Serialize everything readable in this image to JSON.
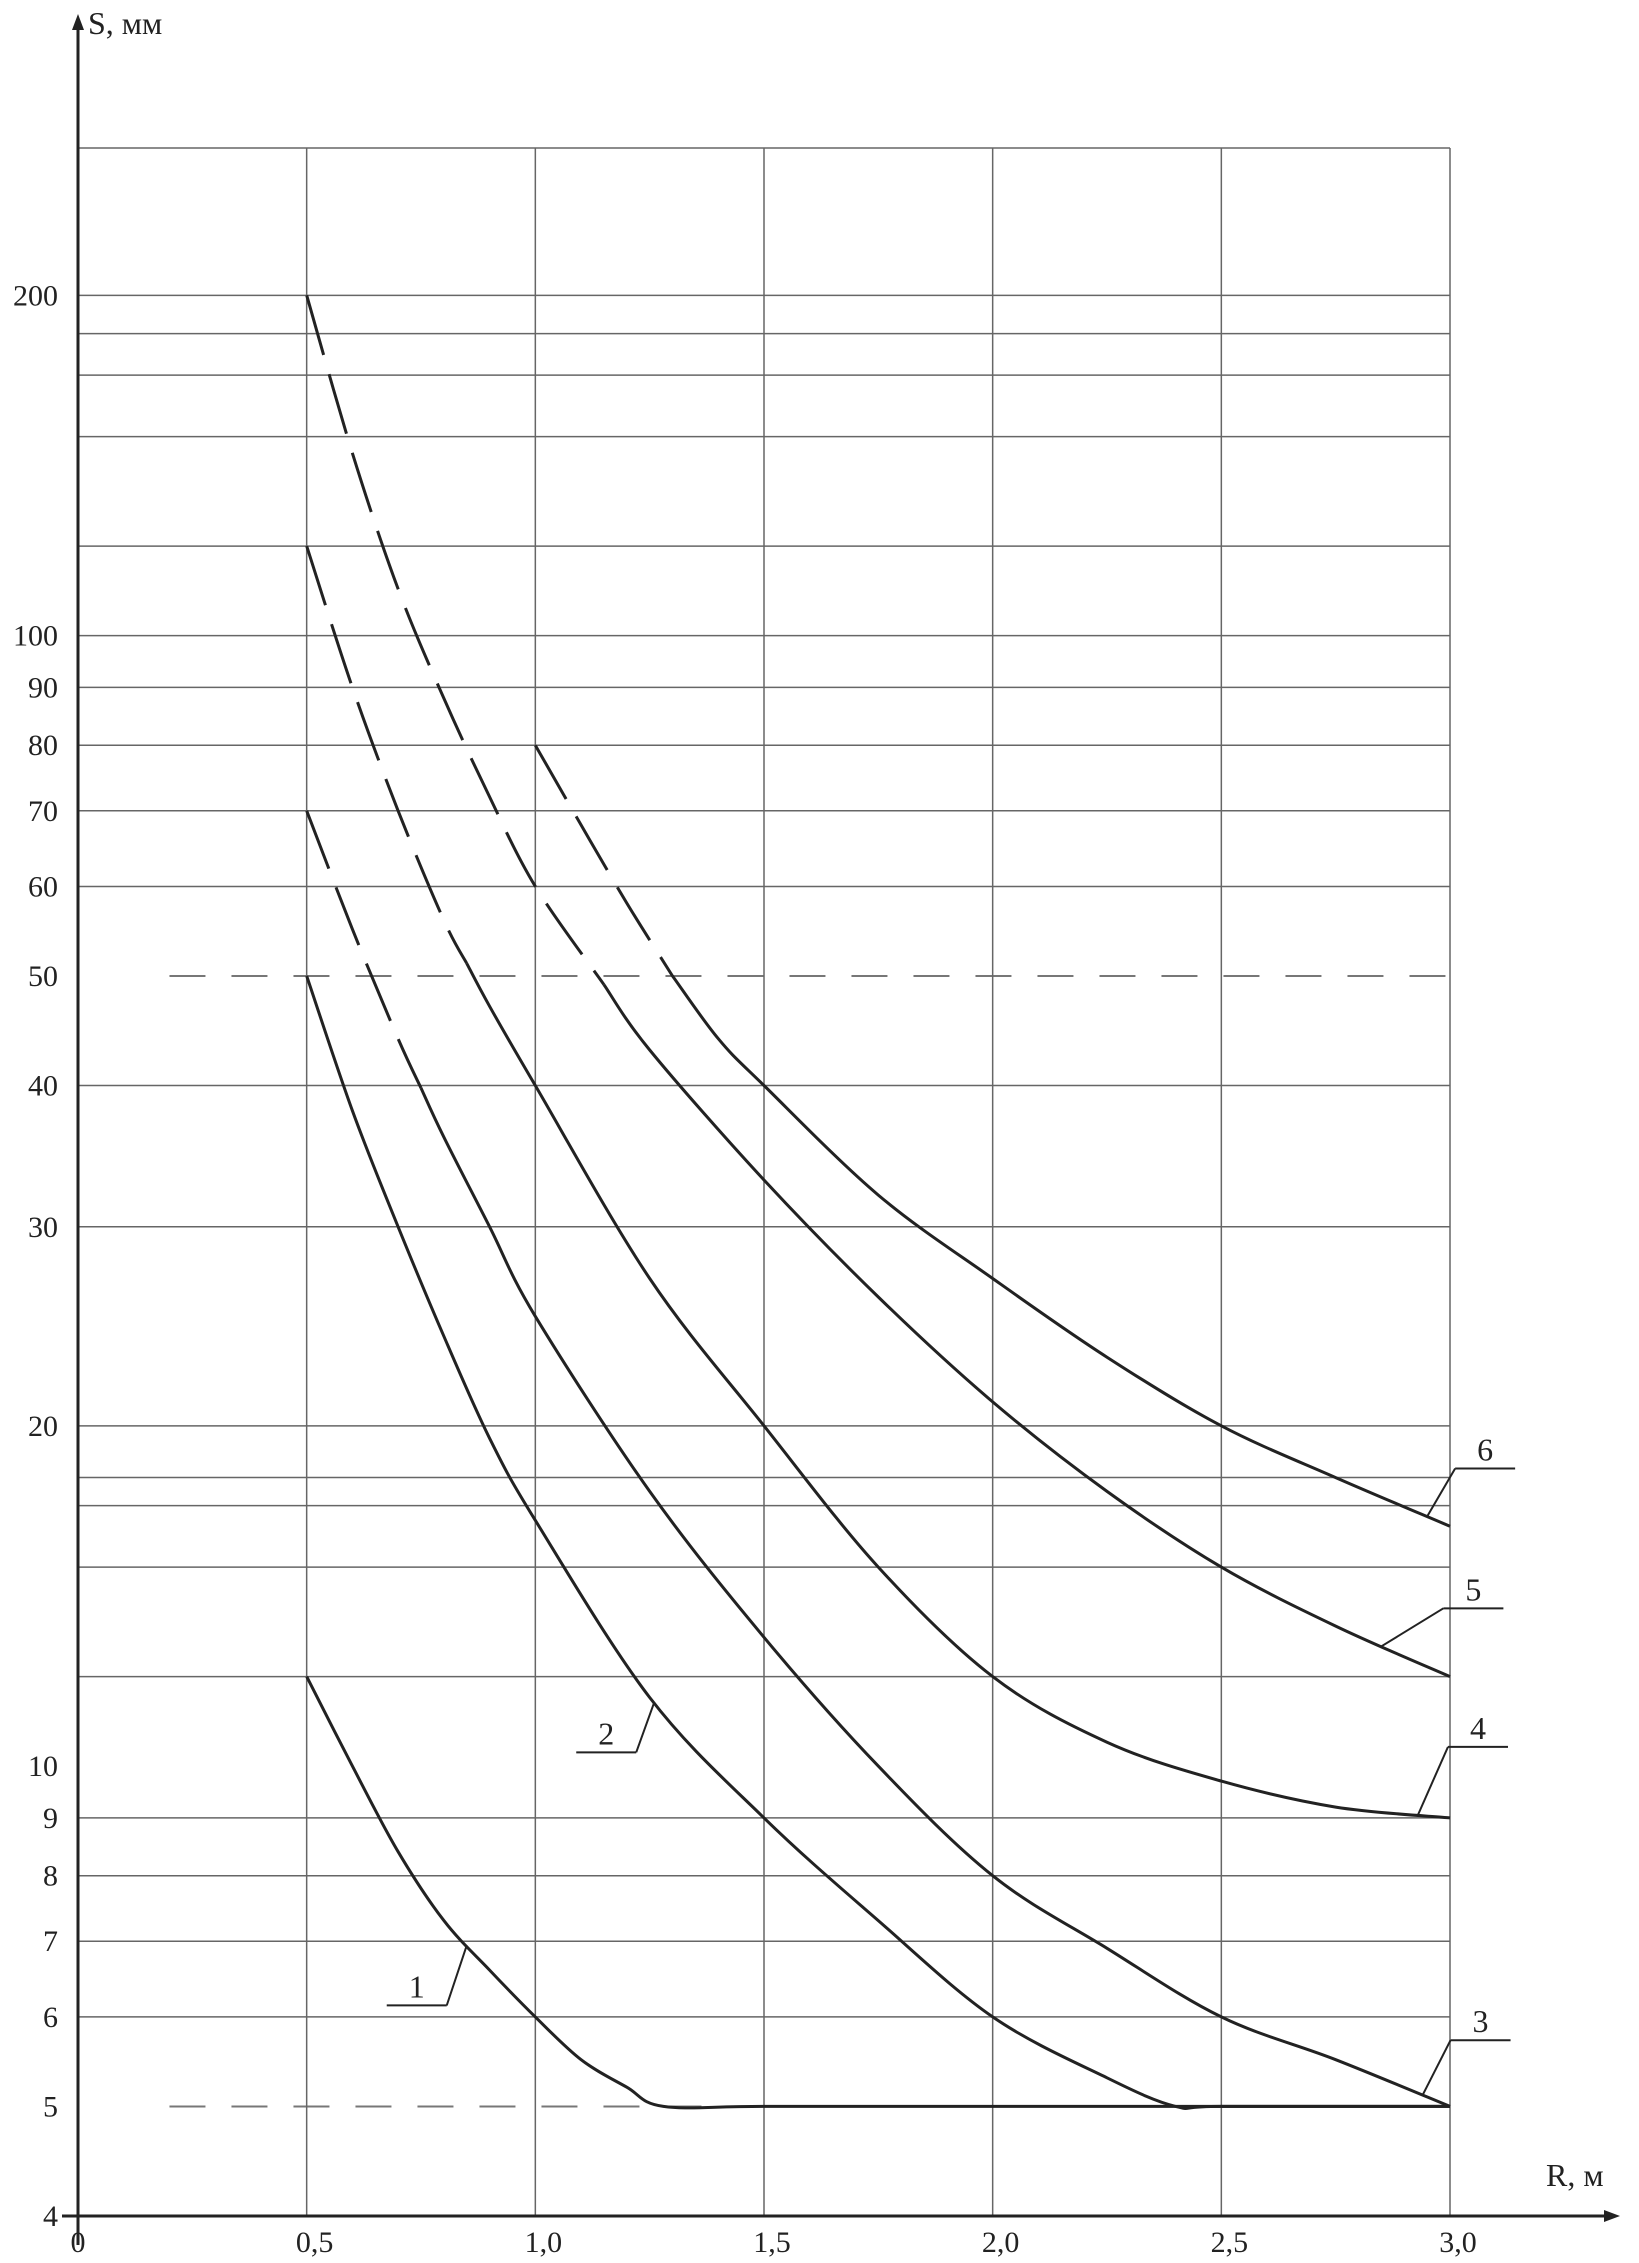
{
  "chart_data": {
    "type": "line",
    "title": "",
    "xlabel": "R, м",
    "ylabel": "S, мм",
    "x_scale": "linear",
    "y_scale": "log",
    "xlim": [
      0,
      3.0
    ],
    "ylim": [
      4,
      270
    ],
    "grid": true,
    "x_ticks": [
      {
        "value": 0,
        "label": "0"
      },
      {
        "value": 0.5,
        "label": "0,5"
      },
      {
        "value": 1.0,
        "label": "1,0"
      },
      {
        "value": 1.5,
        "label": "1,5"
      },
      {
        "value": 2.0,
        "label": "2,0"
      },
      {
        "value": 2.5,
        "label": "2,5"
      },
      {
        "value": 3.0,
        "label": "3,0"
      }
    ],
    "y_ticks": [
      {
        "value": 4,
        "label": "4"
      },
      {
        "value": 5,
        "label": "5"
      },
      {
        "value": 6,
        "label": "6"
      },
      {
        "value": 7,
        "label": "7"
      },
      {
        "value": 8,
        "label": "8"
      },
      {
        "value": 9,
        "label": "9"
      },
      {
        "value": 10,
        "label": "10"
      },
      {
        "value": 20,
        "label": "20"
      },
      {
        "value": 30,
        "label": "30"
      },
      {
        "value": 40,
        "label": "40"
      },
      {
        "value": 50,
        "label": "50"
      },
      {
        "value": 60,
        "label": "60"
      },
      {
        "value": 70,
        "label": "70"
      },
      {
        "value": 80,
        "label": "80"
      },
      {
        "value": 90,
        "label": "90"
      },
      {
        "value": 100,
        "label": "100"
      },
      {
        "value": 200,
        "label": "200"
      }
    ],
    "gridlines_y": [
      5,
      6,
      7,
      8,
      9,
      12,
      15,
      17,
      18,
      20,
      30,
      40,
      50,
      60,
      70,
      80,
      90,
      100,
      120,
      150,
      170,
      185,
      200,
      270
    ],
    "dashed_gridlines_y": [
      5,
      50
    ],
    "gridlines_x": [
      0,
      0.5,
      1.0,
      1.5,
      2.0,
      2.5,
      3.0
    ],
    "series": [
      {
        "name": "1",
        "x": [
          0.5,
          0.6,
          0.7,
          0.8,
          0.9,
          1.0,
          1.1,
          1.2,
          1.28,
          1.5,
          2.0,
          2.5,
          3.0
        ],
        "y": [
          12,
          10,
          8.4,
          7.3,
          6.6,
          6.0,
          5.5,
          5.2,
          5.0,
          5.0,
          5.0,
          5.0,
          5.0
        ],
        "dashed_until_x": null
      },
      {
        "name": "2",
        "x": [
          0.5,
          0.6,
          0.7,
          0.8,
          0.9,
          1.0,
          1.25,
          1.5,
          1.75,
          2.0,
          2.25,
          2.4,
          2.5,
          3.0
        ],
        "y": [
          50,
          38,
          30,
          24,
          19.5,
          16.5,
          11.5,
          9.0,
          7.3,
          6.0,
          5.3,
          5.0,
          5.0,
          5.0
        ],
        "dashed_until_x": null
      },
      {
        "name": "3",
        "x": [
          0.5,
          0.6,
          0.7,
          0.8,
          0.9,
          1.0,
          1.25,
          1.5,
          1.75,
          2.0,
          2.25,
          2.5,
          2.75,
          3.0
        ],
        "y": [
          70,
          55,
          44,
          36,
          30,
          25,
          17.5,
          13,
          10,
          8.0,
          6.9,
          6.0,
          5.5,
          5.0
        ],
        "dashed_until_x": 0.75
      },
      {
        "name": "4",
        "x": [
          0.5,
          0.6,
          0.7,
          0.8,
          0.9,
          1.0,
          1.25,
          1.5,
          1.75,
          2.0,
          2.25,
          2.5,
          2.75,
          3.0
        ],
        "y": [
          120,
          90,
          70,
          56,
          47,
          40,
          27,
          20,
          15,
          12,
          10.5,
          9.7,
          9.2,
          9.0
        ],
        "dashed_until_x": 0.85
      },
      {
        "name": "5",
        "x": [
          0.5,
          0.6,
          0.7,
          0.8,
          0.9,
          1.0,
          1.25,
          1.5,
          1.75,
          2.0,
          2.25,
          2.5,
          2.75,
          3.0
        ],
        "y": [
          200,
          145,
          110,
          88,
          72,
          60,
          43,
          33,
          26,
          21,
          17.5,
          15,
          13.3,
          12
        ],
        "dashed_until_x": 1.15
      },
      {
        "name": "6",
        "x": [
          1.0,
          1.1,
          1.2,
          1.3,
          1.4,
          1.5,
          1.75,
          2.0,
          2.25,
          2.5,
          2.75,
          3.0
        ],
        "y": [
          80,
          68,
          58,
          50,
          44,
          40,
          32,
          27,
          23,
          20,
          18,
          16.3
        ],
        "dashed_until_x": 1.3
      }
    ]
  }
}
